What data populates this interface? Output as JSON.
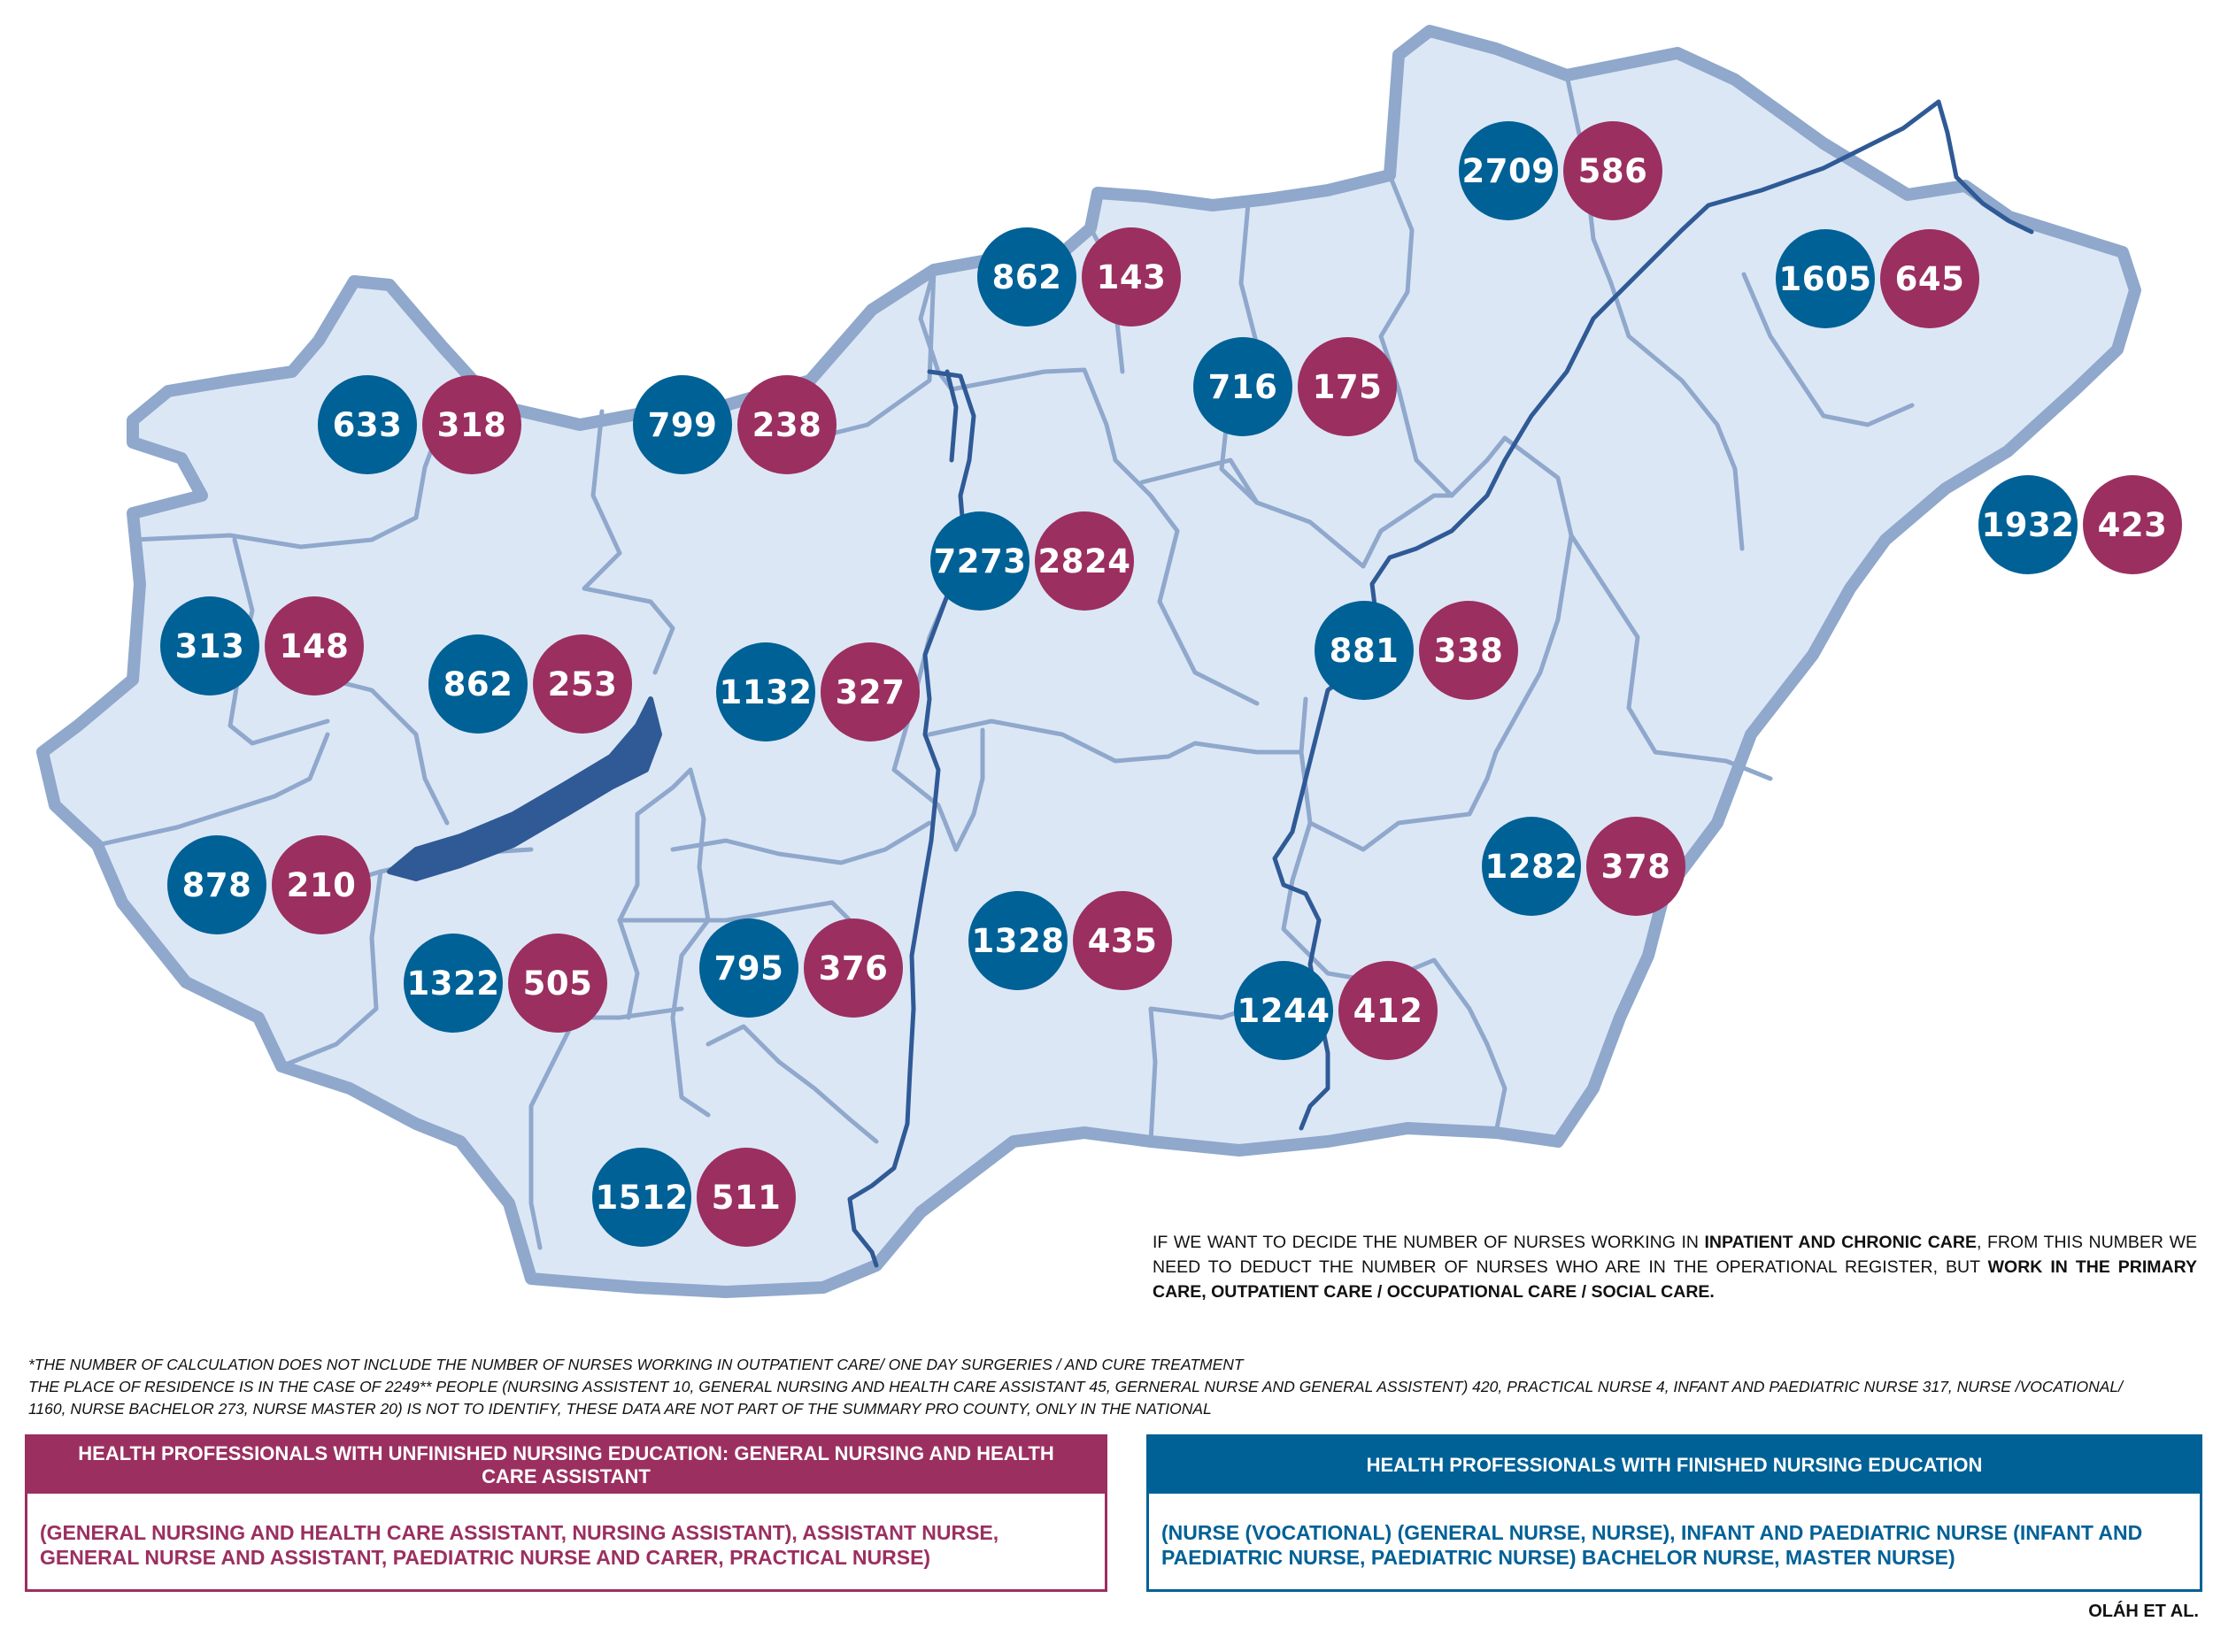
{
  "colors": {
    "finished": "#006196",
    "unfinished": "#9b2f60",
    "land": "#dce7f6",
    "border": "#8fa8cc",
    "river": "#2f5a96",
    "lake": "#2f5a96"
  },
  "counties": [
    {
      "finished": "633",
      "unfinished": "318"
    },
    {
      "finished": "799",
      "unfinished": "238"
    },
    {
      "finished": "862",
      "unfinished": "143"
    },
    {
      "finished": "2709",
      "unfinished": "586"
    },
    {
      "finished": "1605",
      "unfinished": "645"
    },
    {
      "finished": "716",
      "unfinished": "175"
    },
    {
      "finished": "7273",
      "unfinished": "2824"
    },
    {
      "finished": "1932",
      "unfinished": "423"
    },
    {
      "finished": "313",
      "unfinished": "148"
    },
    {
      "finished": "862",
      "unfinished": "253"
    },
    {
      "finished": "1132",
      "unfinished": "327"
    },
    {
      "finished": "881",
      "unfinished": "338"
    },
    {
      "finished": "878",
      "unfinished": "210"
    },
    {
      "finished": "1282",
      "unfinished": "378"
    },
    {
      "finished": "1322",
      "unfinished": "505"
    },
    {
      "finished": "795",
      "unfinished": "376"
    },
    {
      "finished": "1328",
      "unfinished": "435"
    },
    {
      "finished": "1244",
      "unfinished": "412"
    },
    {
      "finished": "1512",
      "unfinished": "511"
    }
  ],
  "note": {
    "t1": "IF WE WANT TO DECIDE THE NUMBER OF NURSES WORKING IN ",
    "b1": "INPATIENT AND CHRONIC CARE",
    "t2": ", FROM THIS NUMBER WE NEED TO DEDUCT THE NUMBER OF NURSES WHO ARE IN THE OPERATIONAL REGISTER, BUT ",
    "b2": "WORK IN THE PRIMARY CARE, OUTPATIENT CARE / OCCUPATIONAL CARE / SOCIAL CARE."
  },
  "footnotes": [
    "*THE NUMBER OF CALCULATION DOES NOT INCLUDE THE NUMBER  OF NURSES WORKING IN OUTPATIENT CARE/  ONE DAY SURGERIES / AND CURE TREATMENT",
    "THE PLACE OF RESIDENCE IS IN THE CASE OF 2249** PEOPLE (NURSING ASSISTENT 10, GENERAL NURSING AND HEALTH CARE ASSISTANT 45, GERNERAL NURSE AND GENERAL ASSISTENT) 420, PRACTICAL NURSE 4, INFANT AND PAEDIATRIC NURSE 317, NURSE /VOCATIONAL/",
    "1160, NURSE BACHELOR 273, NURSE MASTER 20) IS NOT TO IDENTIFY, THESE DATA ARE NOT PART OF THE SUMMARY PRO COUNTY, ONLY IN THE NATIONAL"
  ],
  "legend": {
    "unfinished": {
      "title": "HEALTH PROFESSIONALS WITH UNFINISHED NURSING EDUCATION: GENERAL NURSING AND HEALTH CARE ASSISTANT",
      "text": "(GENERAL NURSING AND HEALTH CARE ASSISTANT, NURSING ASSISTANT), ASSISTANT NURSE, GENERAL NURSE AND ASSISTANT, PAEDIATRIC NURSE AND CARER, PRACTICAL NURSE)"
    },
    "finished": {
      "title": "HEALTH PROFESSIONALS WITH FINISHED NURSING EDUCATION",
      "text": "(NURSE (VOCATIONAL) (GENERAL NURSE, NURSE), INFANT AND PAEDIATRIC NURSE (INFANT AND PAEDIATRIC NURSE, PAEDIATRIC NURSE) BACHELOR NURSE, MASTER NURSE)"
    }
  },
  "author": "OLÁH ET AL."
}
